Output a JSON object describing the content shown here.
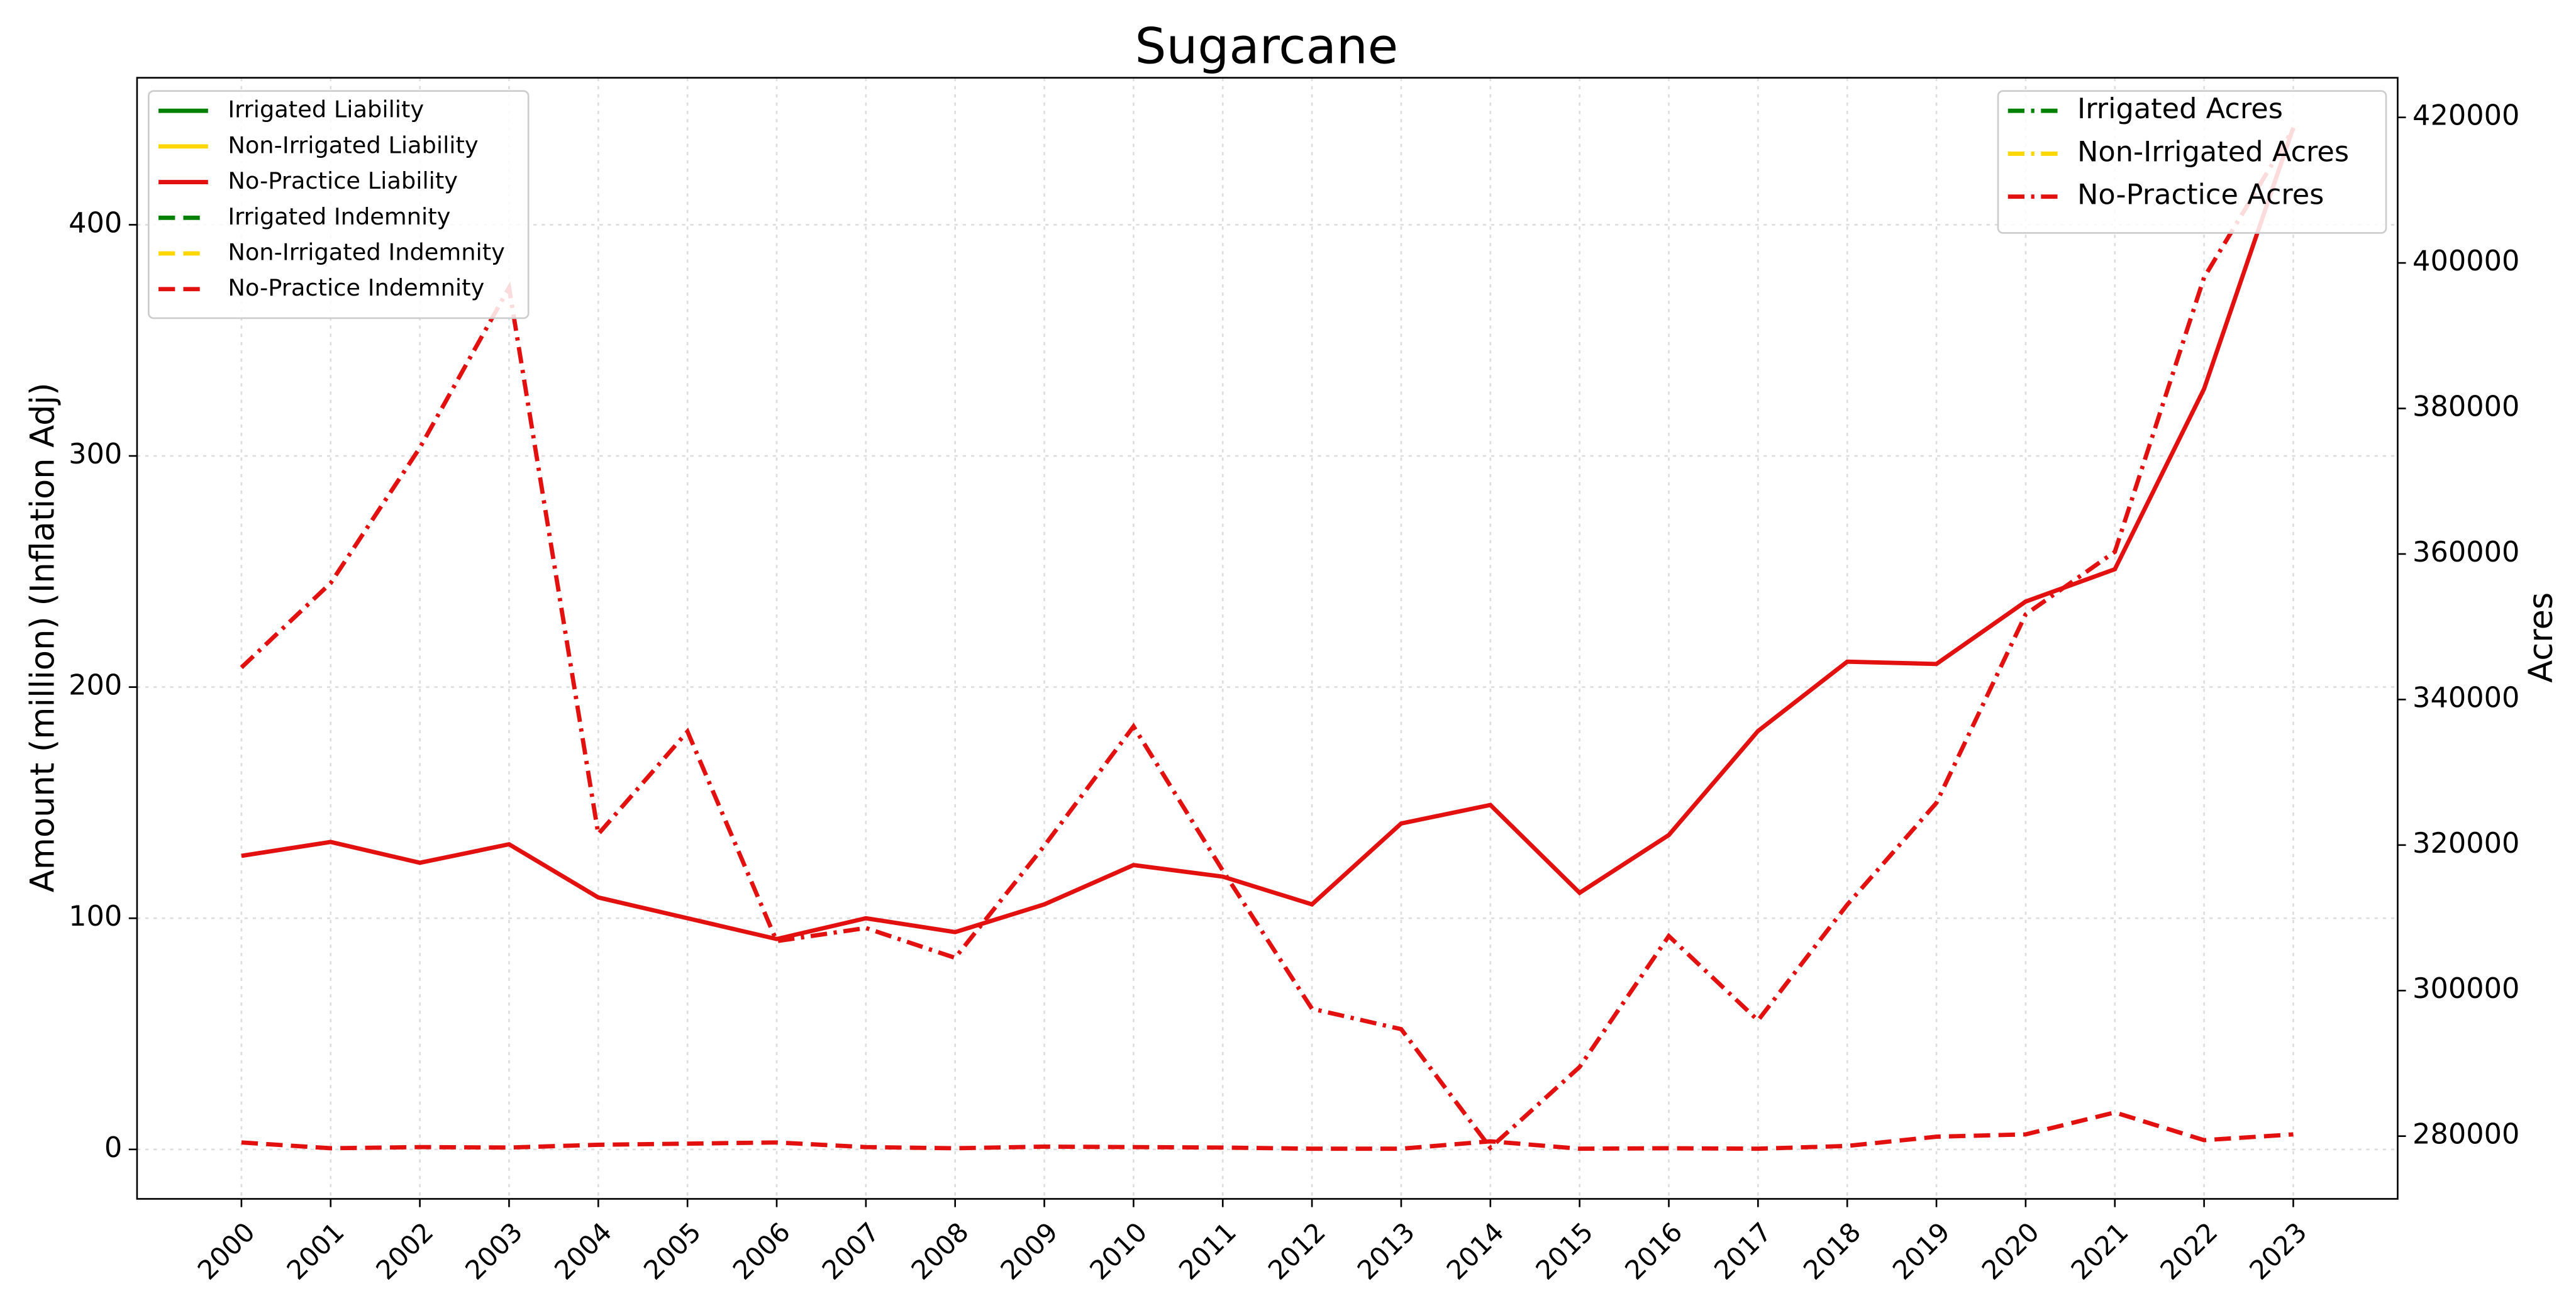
{
  "chart_data": {
    "type": "line",
    "title": "Sugarcane",
    "ylabel": "Amount (million) (Inflation Adj)",
    "y2label": "Acres",
    "x": [
      2000,
      2001,
      2002,
      2003,
      2004,
      2005,
      2006,
      2007,
      2008,
      2009,
      2010,
      2011,
      2012,
      2013,
      2014,
      2015,
      2016,
      2017,
      2018,
      2019,
      2020,
      2021,
      2022,
      2023
    ],
    "xlim": [
      1998.83,
      2024.17
    ],
    "xticks": [
      2000,
      2001,
      2002,
      2003,
      2004,
      2005,
      2006,
      2007,
      2008,
      2009,
      2010,
      2011,
      2012,
      2013,
      2014,
      2015,
      2016,
      2017,
      2018,
      2019,
      2020,
      2021,
      2022,
      2023
    ],
    "ylim": [
      -21.4,
      463.6
    ],
    "yticks": [
      0,
      100,
      200,
      300,
      400
    ],
    "y2lim": [
      271377,
      425446
    ],
    "y2ticks": [
      280000,
      300000,
      320000,
      340000,
      360000,
      380000,
      400000,
      420000
    ],
    "grid": true,
    "legend": "upper left",
    "legend2": "upper right",
    "series": [
      {
        "name": "Irrigated Liability",
        "color": "#008000",
        "dash": "solid",
        "values": [
          null,
          null,
          null,
          null,
          null,
          null,
          null,
          null,
          null,
          null,
          null,
          null,
          null,
          null,
          null,
          null,
          null,
          null,
          null,
          null,
          null,
          null,
          null,
          null
        ]
      },
      {
        "name": "Non-Irrigated Liability",
        "color": "#ffd700",
        "dash": "solid",
        "values": [
          null,
          null,
          null,
          null,
          null,
          null,
          null,
          null,
          null,
          null,
          null,
          null,
          null,
          null,
          null,
          null,
          null,
          null,
          null,
          null,
          null,
          null,
          null,
          null
        ]
      },
      {
        "name": "No-Practice Liability",
        "color": "#e31010",
        "dash": "solid",
        "values": [
          127,
          133,
          124,
          132,
          109,
          100,
          91,
          100,
          94,
          106,
          123,
          118,
          106,
          141,
          149,
          111,
          136,
          181,
          211,
          210,
          237,
          251,
          329,
          442
        ]
      },
      {
        "name": "Irrigated Indemnity",
        "color": "#008000",
        "dash": "dashed",
        "values": [
          null,
          null,
          null,
          null,
          null,
          null,
          null,
          null,
          null,
          null,
          null,
          null,
          null,
          null,
          null,
          null,
          null,
          null,
          null,
          null,
          null,
          null,
          null,
          null
        ]
      },
      {
        "name": "Non-Irrigated Indemnity",
        "color": "#ffd700",
        "dash": "dashed",
        "values": [
          null,
          null,
          null,
          null,
          null,
          null,
          null,
          null,
          null,
          null,
          null,
          null,
          null,
          null,
          null,
          null,
          null,
          null,
          null,
          null,
          null,
          null,
          null,
          null
        ]
      },
      {
        "name": "No-Practice Indemnity",
        "color": "#e31010",
        "dash": "dashed",
        "values": [
          3,
          0.5,
          1,
          0.8,
          2,
          2.5,
          3,
          1,
          0.5,
          1.2,
          1,
          0.8,
          0.3,
          0.3,
          3.5,
          0.3,
          0.5,
          0.3,
          1.5,
          5.5,
          6.5,
          16,
          4,
          6.5
        ]
      },
      {
        "name": "Irrigated Acres",
        "color": "#008000",
        "dash": "dashdot",
        "axis": "y2",
        "values": [
          null,
          null,
          null,
          null,
          null,
          null,
          null,
          null,
          null,
          null,
          null,
          null,
          null,
          null,
          null,
          null,
          null,
          null,
          null,
          null,
          null,
          null,
          null,
          null
        ]
      },
      {
        "name": "Non-Irrigated Acres",
        "color": "#ffd700",
        "dash": "dashdot",
        "axis": "y2",
        "values": [
          null,
          null,
          null,
          null,
          null,
          null,
          null,
          null,
          null,
          null,
          null,
          null,
          null,
          null,
          null,
          null,
          null,
          null,
          null,
          null,
          null,
          null,
          null,
          null
        ]
      },
      {
        "name": "No-Practice Acres",
        "color": "#e31010",
        "dash": "dashdot",
        "axis": "y2",
        "values": [
          344400,
          356000,
          374600,
          396600,
          321500,
          335600,
          306800,
          308600,
          304500,
          319900,
          336300,
          316500,
          297500,
          294700,
          278400,
          289500,
          307500,
          295900,
          311800,
          325800,
          351700,
          360300,
          398000,
          418400
        ]
      }
    ]
  }
}
